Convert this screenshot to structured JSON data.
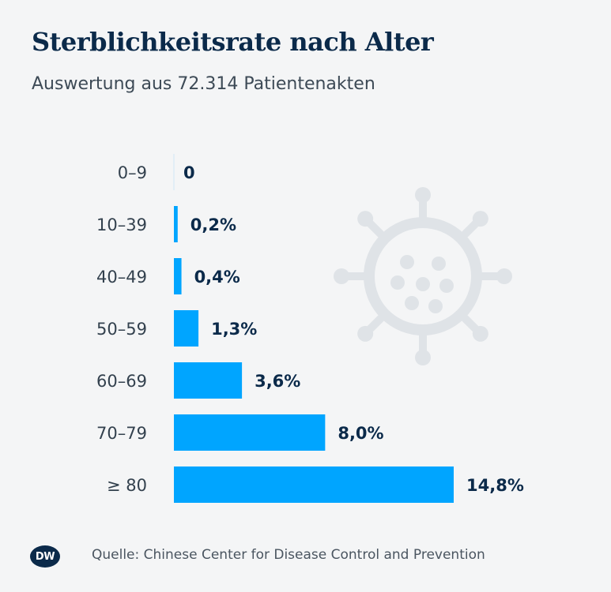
{
  "title": "Sterblichkeitsrate nach Alter",
  "subtitle": "Auswertung aus 72.314 Patientenakten",
  "source": "Quelle: Chinese Center for Disease Control and Prevention",
  "logo_text": "DW",
  "colors": {
    "bar": "#00a5ff",
    "title": "#0b2a4a",
    "virus_icon": "#dfe3e7",
    "background": "#f4f5f6"
  },
  "decoration_icon": "virus-icon",
  "chart_data": {
    "type": "bar",
    "orientation": "horizontal",
    "categories": [
      "0–9",
      "10–39",
      "40–49",
      "50–59",
      "60–69",
      "70–79",
      "≥ 80"
    ],
    "values": [
      0,
      0.2,
      0.4,
      1.3,
      3.6,
      8.0,
      14.8
    ],
    "value_labels": [
      "0",
      "0,2%",
      "0,4%",
      "1,3%",
      "3,6%",
      "8,0%",
      "14,8%"
    ],
    "unit": "%",
    "xlim": [
      0,
      14.8
    ],
    "grid": false,
    "legend": "none"
  }
}
